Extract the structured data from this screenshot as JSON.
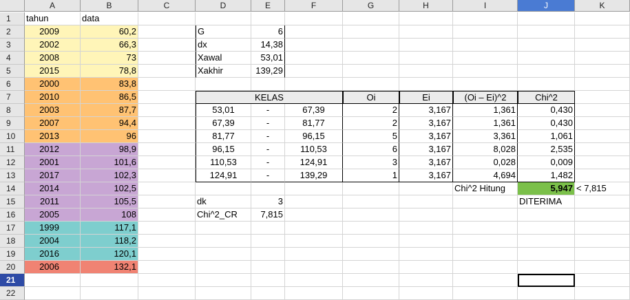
{
  "columns": [
    "A",
    "B",
    "C",
    "D",
    "E",
    "F",
    "G",
    "H",
    "I",
    "J",
    "K"
  ],
  "selected_column": "J",
  "rows": [
    "1",
    "2",
    "3",
    "4",
    "5",
    "6",
    "7",
    "8",
    "9",
    "10",
    "11",
    "12",
    "13",
    "14",
    "15",
    "16",
    "17",
    "18",
    "19",
    "20",
    "21",
    "22"
  ],
  "selected_row": "21",
  "colors": {
    "yellow": "#fff5b8",
    "orange": "#ffc273",
    "purple": "#c8a6d4",
    "teal": "#7ecece",
    "red": "#f08373",
    "green": "#7bc04a"
  },
  "data_table": {
    "header_tahun": "tahun",
    "header_data": "data",
    "rows": [
      {
        "tahun": "2009",
        "data": "60,2",
        "group": "yellow"
      },
      {
        "tahun": "2002",
        "data": "66,3",
        "group": "yellow"
      },
      {
        "tahun": "2008",
        "data": "73",
        "group": "yellow"
      },
      {
        "tahun": "2015",
        "data": "78,8",
        "group": "yellow"
      },
      {
        "tahun": "2000",
        "data": "83,8",
        "group": "orange"
      },
      {
        "tahun": "2010",
        "data": "86,5",
        "group": "orange"
      },
      {
        "tahun": "2003",
        "data": "87,7",
        "group": "orange"
      },
      {
        "tahun": "2007",
        "data": "94,4",
        "group": "orange"
      },
      {
        "tahun": "2013",
        "data": "96",
        "group": "orange"
      },
      {
        "tahun": "2012",
        "data": "98,9",
        "group": "purple"
      },
      {
        "tahun": "2001",
        "data": "101,6",
        "group": "purple"
      },
      {
        "tahun": "2017",
        "data": "102,3",
        "group": "purple"
      },
      {
        "tahun": "2014",
        "data": "102,5",
        "group": "purple"
      },
      {
        "tahun": "2011",
        "data": "105,5",
        "group": "purple"
      },
      {
        "tahun": "2005",
        "data": "108",
        "group": "purple"
      },
      {
        "tahun": "1999",
        "data": "117,1",
        "group": "teal"
      },
      {
        "tahun": "2004",
        "data": "118,2",
        "group": "teal"
      },
      {
        "tahun": "2016",
        "data": "120,1",
        "group": "teal"
      },
      {
        "tahun": "2006",
        "data": "132,1",
        "group": "red"
      }
    ]
  },
  "params": [
    {
      "label": "G",
      "value": "6"
    },
    {
      "label": "dx",
      "value": "14,38"
    },
    {
      "label": "Xawal",
      "value": "53,01"
    },
    {
      "label": "Xakhir",
      "value": "139,29"
    }
  ],
  "kelas_table": {
    "headers": {
      "kelas": "KELAS",
      "oi": "Oi",
      "ei": "Ei",
      "diff": "(Oi – Ei)^2",
      "chi": "Chi^2"
    },
    "rows": [
      {
        "low": "53,01",
        "dash": "-",
        "high": "67,39",
        "oi": "2",
        "ei": "3,167",
        "diff": "1,361",
        "chi": "0,430"
      },
      {
        "low": "67,39",
        "dash": "-",
        "high": "81,77",
        "oi": "2",
        "ei": "3,167",
        "diff": "1,361",
        "chi": "0,430"
      },
      {
        "low": "81,77",
        "dash": "-",
        "high": "96,15",
        "oi": "5",
        "ei": "3,167",
        "diff": "3,361",
        "chi": "1,061"
      },
      {
        "low": "96,15",
        "dash": "-",
        "high": "110,53",
        "oi": "6",
        "ei": "3,167",
        "diff": "8,028",
        "chi": "2,535"
      },
      {
        "low": "110,53",
        "dash": "-",
        "high": "124,91",
        "oi": "3",
        "ei": "3,167",
        "diff": "0,028",
        "chi": "0,009"
      },
      {
        "low": "124,91",
        "dash": "-",
        "high": "139,29",
        "oi": "1",
        "ei": "3,167",
        "diff": "4,694",
        "chi": "1,482"
      }
    ]
  },
  "chi_hitung": {
    "label": "Chi^2 Hitung",
    "value": "5,947",
    "comparison": "< 7,815",
    "result": "DITERIMA"
  },
  "critical": [
    {
      "label": "dk",
      "value": "3"
    },
    {
      "label": "Chi^2_CR",
      "value": "7,815"
    }
  ]
}
